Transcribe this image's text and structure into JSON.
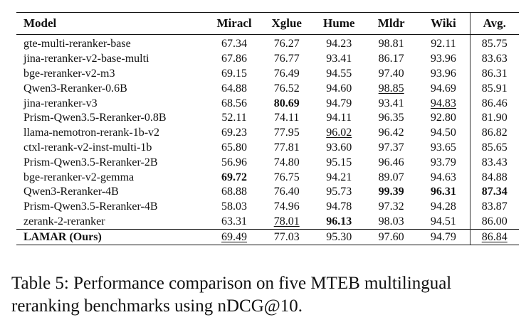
{
  "table": {
    "headers": [
      "Model",
      "Miracl",
      "Xglue",
      "Hume",
      "Mldr",
      "Wiki",
      "Avg."
    ],
    "rows": [
      {
        "model": "gte-multi-reranker-base",
        "values": [
          "67.34",
          "76.27",
          "94.23",
          "98.81",
          "92.11",
          "85.75"
        ],
        "bold": [],
        "underline": []
      },
      {
        "model": "jina-reranker-v2-base-multi",
        "values": [
          "67.86",
          "76.77",
          "93.41",
          "86.17",
          "93.96",
          "83.63"
        ],
        "bold": [],
        "underline": []
      },
      {
        "model": "bge-reranker-v2-m3",
        "values": [
          "69.15",
          "76.49",
          "94.55",
          "97.40",
          "93.96",
          "86.31"
        ],
        "bold": [],
        "underline": []
      },
      {
        "model": "Qwen3-Reranker-0.6B",
        "values": [
          "64.88",
          "76.52",
          "94.60",
          "98.85",
          "94.69",
          "85.91"
        ],
        "bold": [],
        "underline": [
          3
        ]
      },
      {
        "model": "jina-reranker-v3",
        "values": [
          "68.56",
          "80.69",
          "94.79",
          "93.41",
          "94.83",
          "86.46"
        ],
        "bold": [
          1
        ],
        "underline": [
          4
        ]
      },
      {
        "model": "Prism-Qwen3.5-Reranker-0.8B",
        "values": [
          "52.11",
          "74.11",
          "94.11",
          "96.35",
          "92.80",
          "81.90"
        ],
        "bold": [],
        "underline": []
      },
      {
        "model": "llama-nemotron-rerank-1b-v2",
        "values": [
          "69.23",
          "77.95",
          "96.02",
          "96.42",
          "94.50",
          "86.82"
        ],
        "bold": [],
        "underline": [
          2
        ]
      },
      {
        "model": "ctxl-rerank-v2-inst-multi-1b",
        "values": [
          "65.80",
          "77.81",
          "93.60",
          "97.37",
          "93.65",
          "85.65"
        ],
        "bold": [],
        "underline": []
      },
      {
        "model": "Prism-Qwen3.5-Reranker-2B",
        "values": [
          "56.96",
          "74.80",
          "95.15",
          "96.46",
          "93.79",
          "83.43"
        ],
        "bold": [],
        "underline": []
      },
      {
        "model": "bge-reranker-v2-gemma",
        "values": [
          "69.72",
          "76.75",
          "94.21",
          "89.07",
          "94.63",
          "84.88"
        ],
        "bold": [
          0
        ],
        "underline": []
      },
      {
        "model": "Qwen3-Reranker-4B",
        "values": [
          "68.88",
          "76.40",
          "95.73",
          "99.39",
          "96.31",
          "87.34"
        ],
        "bold": [
          3,
          4,
          5
        ],
        "underline": []
      },
      {
        "model": "Prism-Qwen3.5-Reranker-4B",
        "values": [
          "58.03",
          "74.96",
          "94.78",
          "97.32",
          "94.28",
          "83.87"
        ],
        "bold": [],
        "underline": []
      },
      {
        "model": "zerank-2-reranker",
        "values": [
          "63.31",
          "78.01",
          "96.13",
          "98.03",
          "94.51",
          "86.00"
        ],
        "bold": [
          2
        ],
        "underline": [
          1
        ]
      }
    ],
    "ours": {
      "model": "LAMAR (Ours)",
      "values": [
        "69.49",
        "77.03",
        "95.30",
        "97.60",
        "94.79",
        "86.84"
      ],
      "bold": [],
      "underline": [
        0,
        5
      ]
    }
  },
  "caption": "Table 5: Performance comparison on five MTEB multilingual reranking benchmarks using nDCG@10."
}
